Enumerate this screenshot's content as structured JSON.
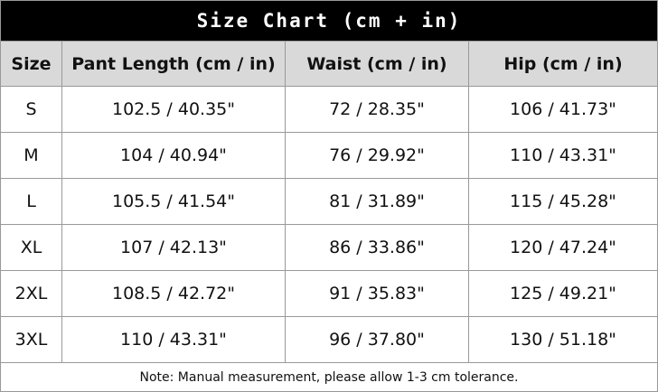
{
  "title": "Size Chart (cm + in)",
  "table": {
    "headers": [
      "Size",
      "Pant Length (cm / in)",
      "Waist (cm / in)",
      "Hip (cm / in)"
    ],
    "rows": [
      [
        "S",
        "102.5 / 40.35\"",
        "72 / 28.35\"",
        "106 / 41.73\""
      ],
      [
        "M",
        "104 / 40.94\"",
        "76 / 29.92\"",
        "110 / 43.31\""
      ],
      [
        "L",
        "105.5 / 41.54\"",
        "81 / 31.89\"",
        "115 / 45.28\""
      ],
      [
        "XL",
        "107 / 42.13\"",
        "86 / 33.86\"",
        "120 / 47.24\""
      ],
      [
        "2XL",
        "108.5 / 42.72\"",
        "91 / 35.83\"",
        "125 / 49.21\""
      ],
      [
        "3XL",
        "110 / 43.31\"",
        "96 / 37.80\"",
        "130 / 51.18\""
      ]
    ]
  },
  "note": "Note: Manual measurement, please allow 1-3 cm tolerance."
}
